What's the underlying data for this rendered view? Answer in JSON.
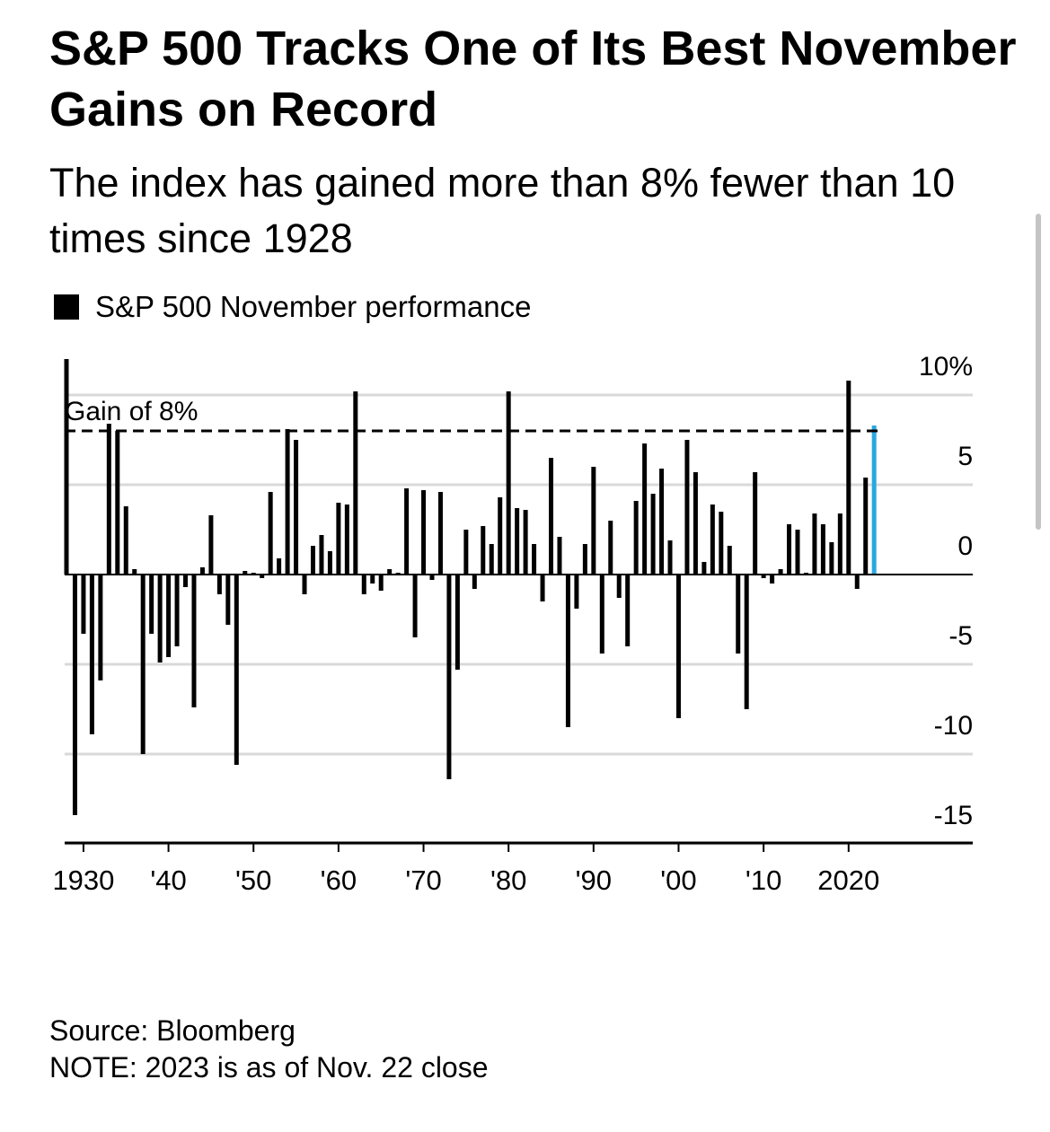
{
  "chart_data": {
    "type": "bar",
    "title": "S&P 500 Tracks One of Its Best November Gains on Record",
    "subtitle": "The index has gained more than 8% fewer than 10 times since 1928",
    "legend": "S&P 500 November performance",
    "y_tick_labels": [
      "10%",
      "5",
      "0",
      "-5",
      "-10",
      "-15"
    ],
    "y_ticks": [
      10,
      5,
      0,
      -5,
      -10,
      -15
    ],
    "ylim": [
      -15,
      12
    ],
    "x_tick_labels": [
      "1930",
      "'40",
      "'50",
      "'60",
      "'70",
      "'80",
      "'90",
      "'00",
      "'10",
      "2020"
    ],
    "x_ticks": [
      1930,
      1940,
      1950,
      1960,
      1970,
      1980,
      1990,
      2000,
      2010,
      2020
    ],
    "xlim": [
      1928,
      2036
    ],
    "reference_line": {
      "value": 8,
      "label": "Gain of 8%"
    },
    "highlight_year": 2023,
    "colors": {
      "bar": "#000000",
      "highlight": "#29a8e0",
      "grid": "#d9d9d9",
      "axis": "#000000"
    },
    "years": [
      1928,
      1929,
      1930,
      1931,
      1932,
      1933,
      1934,
      1935,
      1936,
      1937,
      1938,
      1939,
      1940,
      1941,
      1942,
      1943,
      1944,
      1945,
      1946,
      1947,
      1948,
      1949,
      1950,
      1951,
      1952,
      1953,
      1954,
      1955,
      1956,
      1957,
      1958,
      1959,
      1960,
      1961,
      1962,
      1963,
      1964,
      1965,
      1966,
      1967,
      1968,
      1969,
      1970,
      1971,
      1972,
      1973,
      1974,
      1975,
      1976,
      1977,
      1978,
      1979,
      1980,
      1981,
      1982,
      1983,
      1984,
      1985,
      1986,
      1987,
      1988,
      1989,
      1990,
      1991,
      1992,
      1993,
      1994,
      1995,
      1996,
      1997,
      1998,
      1999,
      2000,
      2001,
      2002,
      2003,
      2004,
      2005,
      2006,
      2007,
      2008,
      2009,
      2010,
      2011,
      2012,
      2013,
      2014,
      2015,
      2016,
      2017,
      2018,
      2019,
      2020,
      2021,
      2022,
      2023
    ],
    "values": [
      12.0,
      -13.4,
      -3.3,
      -8.9,
      -5.9,
      8.4,
      8.0,
      3.8,
      0.3,
      -10.0,
      -3.3,
      -4.9,
      -4.6,
      -4.0,
      -0.7,
      -7.4,
      0.4,
      3.3,
      -1.1,
      -2.8,
      -10.6,
      0.2,
      0.1,
      -0.2,
      4.6,
      0.9,
      8.1,
      7.5,
      -1.1,
      1.6,
      2.2,
      1.3,
      4.0,
      3.9,
      10.2,
      -1.1,
      -0.5,
      -0.9,
      0.3,
      0.1,
      4.8,
      -3.5,
      4.7,
      -0.3,
      4.6,
      -11.4,
      -5.3,
      2.5,
      -0.8,
      2.7,
      1.7,
      4.3,
      10.2,
      3.7,
      3.6,
      1.7,
      -1.5,
      6.5,
      2.1,
      -8.5,
      -1.9,
      1.7,
      6.0,
      -4.4,
      3.0,
      -1.3,
      -4.0,
      4.1,
      7.3,
      4.5,
      5.9,
      1.9,
      -8.0,
      7.5,
      5.7,
      0.7,
      3.9,
      3.5,
      1.6,
      -4.4,
      -7.5,
      5.7,
      -0.2,
      -0.5,
      0.3,
      2.8,
      2.5,
      0.1,
      3.4,
      2.8,
      1.8,
      3.4,
      10.8,
      -0.8,
      5.4,
      8.3
    ]
  },
  "source": {
    "line1": "Source: Bloomberg",
    "line2": "NOTE: 2023 is as of Nov. 22 close"
  }
}
